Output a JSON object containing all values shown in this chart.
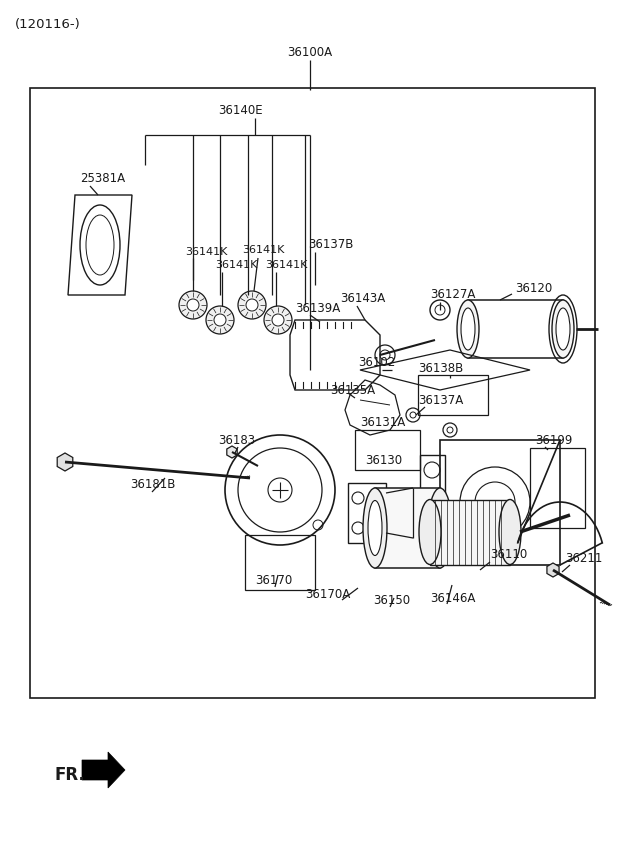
{
  "bg": "#ffffff",
  "lc": "#1a1a1a",
  "tc": "#1a1a1a",
  "title": "(120116-)",
  "label_36100A": "36100A",
  "label_36140E": "36140E",
  "label_25381A": "25381A",
  "label_36141K": "36141K",
  "label_36137B": "36137B",
  "label_36139A": "36139A",
  "label_36143A": "36143A",
  "label_36127A": "36127A",
  "label_36120": "36120",
  "label_36102": "36102",
  "label_36138B": "36138B",
  "label_36137A": "36137A",
  "label_36135A": "36135A",
  "label_36131A": "36131A",
  "label_36130": "36130",
  "label_36199": "36199",
  "label_36110": "36110",
  "label_36183": "36183",
  "label_36181B": "36181B",
  "label_36170": "36170",
  "label_36170A": "36170A",
  "label_36150": "36150",
  "label_36146A": "36146A",
  "label_36211": "36211",
  "fr": "FR."
}
